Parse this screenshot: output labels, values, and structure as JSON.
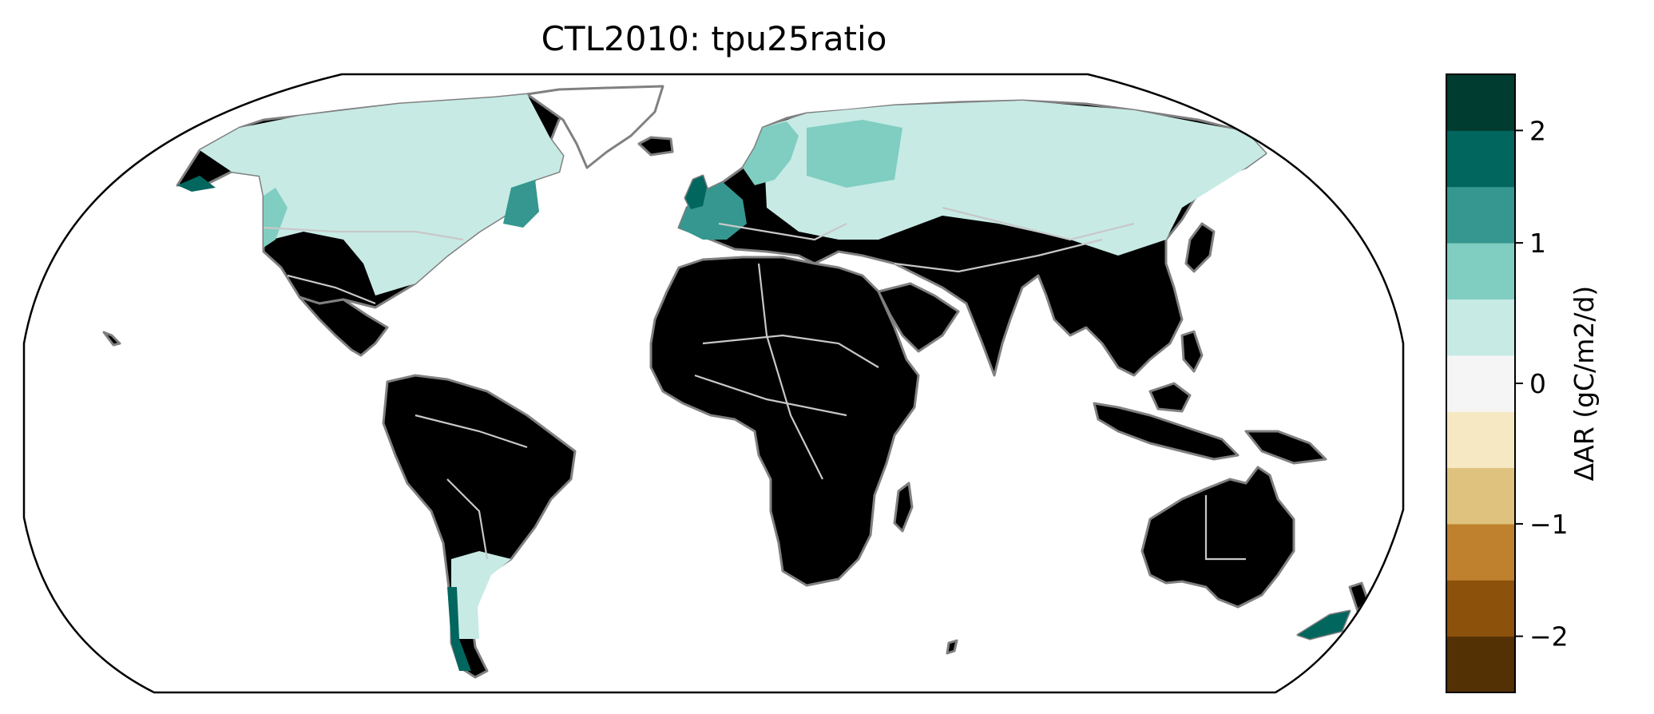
{
  "chart_data": {
    "type": "heatmap",
    "title": "CTL2010: tpu25ratio",
    "projection": "Robinson",
    "region": "global land",
    "colorbar": {
      "label": "ΔAR (gC/m2/d)",
      "boundaries": [
        -2.5,
        -2.0,
        -1.5,
        -1.0,
        -0.5,
        -0.25,
        0.25,
        0.5,
        1.0,
        1.5,
        2.0,
        2.5
      ],
      "colors": [
        "#543005",
        "#8c510a",
        "#bf812d",
        "#dfc27d",
        "#f6e8c3",
        "#f5f5f5",
        "#c7eae5",
        "#80cdc1",
        "#35978f",
        "#01665e",
        "#003c30"
      ],
      "ticks": [
        {
          "value": 2,
          "label": "2"
        },
        {
          "value": 1,
          "label": "1"
        },
        {
          "value": 0,
          "label": "0"
        },
        {
          "value": -1,
          "label": "−1"
        },
        {
          "value": -2,
          "label": "−2"
        }
      ]
    },
    "regions": [
      {
        "region": "Alaska coast",
        "level": 2.2
      },
      {
        "region": "Canada / northern US",
        "level": 0.4
      },
      {
        "region": "Pacific Northwest coast",
        "level": 1.3
      },
      {
        "region": "US east coast",
        "level": 1.8
      },
      {
        "region": "Western Europe",
        "level": 1.8
      },
      {
        "region": "Scandinavia / Baltic",
        "level": 1.3
      },
      {
        "region": "Northern Eurasia",
        "level": 0.4
      },
      {
        "region": "Southern South America",
        "level": 0.4
      },
      {
        "region": "Chile coast",
        "level": 1.8
      },
      {
        "region": "New Zealand",
        "level": 1.8
      },
      {
        "region": "Africa / South Asia / Australia / central Asia",
        "level": 0.0
      }
    ]
  }
}
